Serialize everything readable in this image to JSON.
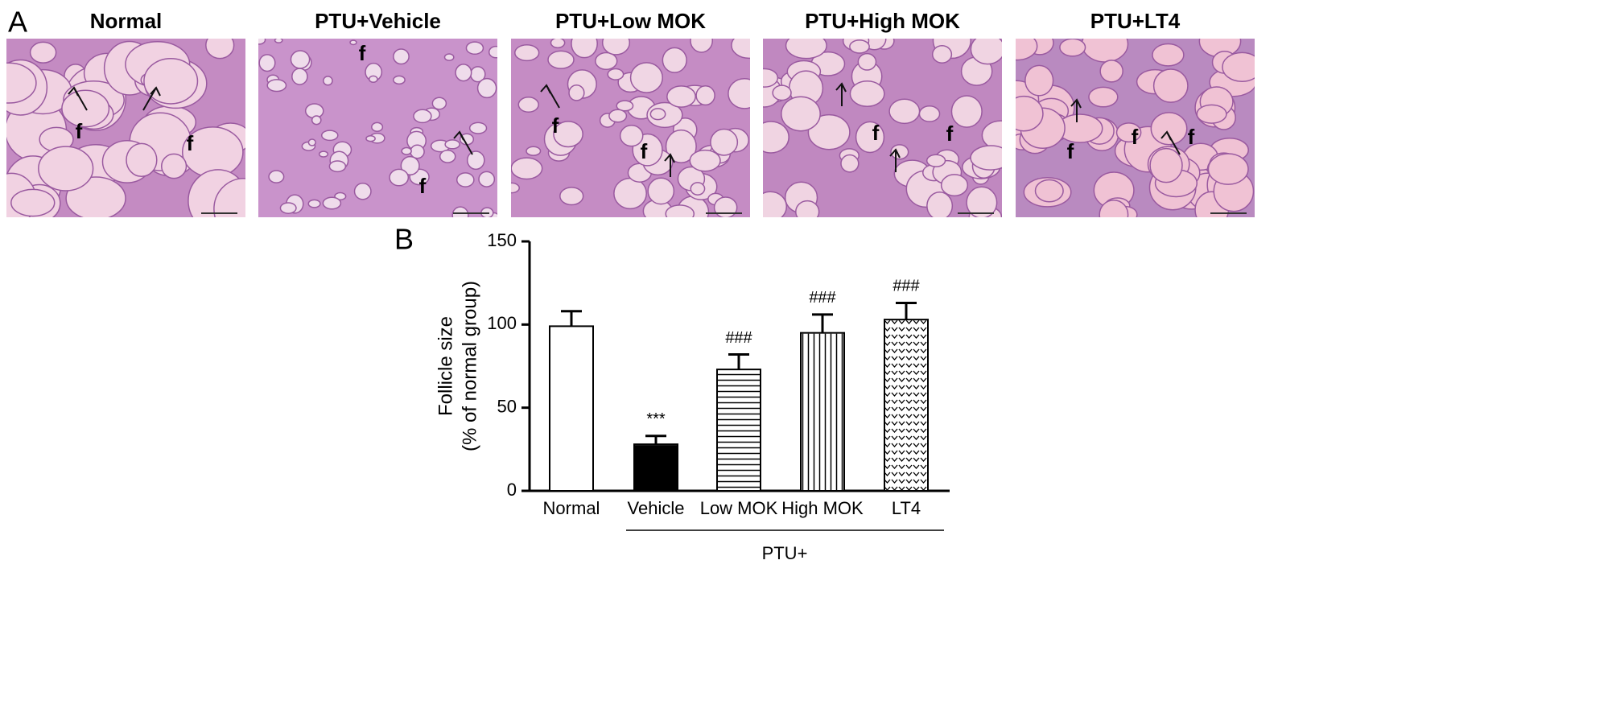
{
  "panel_a": {
    "label": "A",
    "images": [
      {
        "title": "Normal",
        "markers": [
          "f",
          "f"
        ]
      },
      {
        "title": "PTU+Vehicle",
        "markers": [
          "f",
          "f"
        ]
      },
      {
        "title": "PTU+Low MOK",
        "markers": [
          "f",
          "f"
        ]
      },
      {
        "title": "PTU+High MOK",
        "markers": [
          "f",
          "f"
        ]
      },
      {
        "title": "PTU+LT4",
        "markers": [
          "f",
          "f",
          "f"
        ]
      }
    ]
  },
  "chart_data": {
    "type": "bar",
    "panel_label": "B",
    "ylabel": [
      "Follicle size",
      "(% of normal group)"
    ],
    "categories": [
      "Normal",
      "Vehicle",
      "Low MOK",
      "High MOK",
      "LT4"
    ],
    "values": [
      99,
      28,
      73,
      95,
      103
    ],
    "errors": [
      9,
      5,
      9,
      11,
      10
    ],
    "annotations": [
      null,
      "***",
      "###",
      "###",
      "###"
    ],
    "patterns": [
      "none",
      "solid",
      "horizontal",
      "vertical",
      "chevron"
    ],
    "color": "#000000",
    "group_label": "PTU+",
    "ylim": [
      0,
      150
    ],
    "yticks": [
      0,
      50,
      100,
      150
    ]
  }
}
